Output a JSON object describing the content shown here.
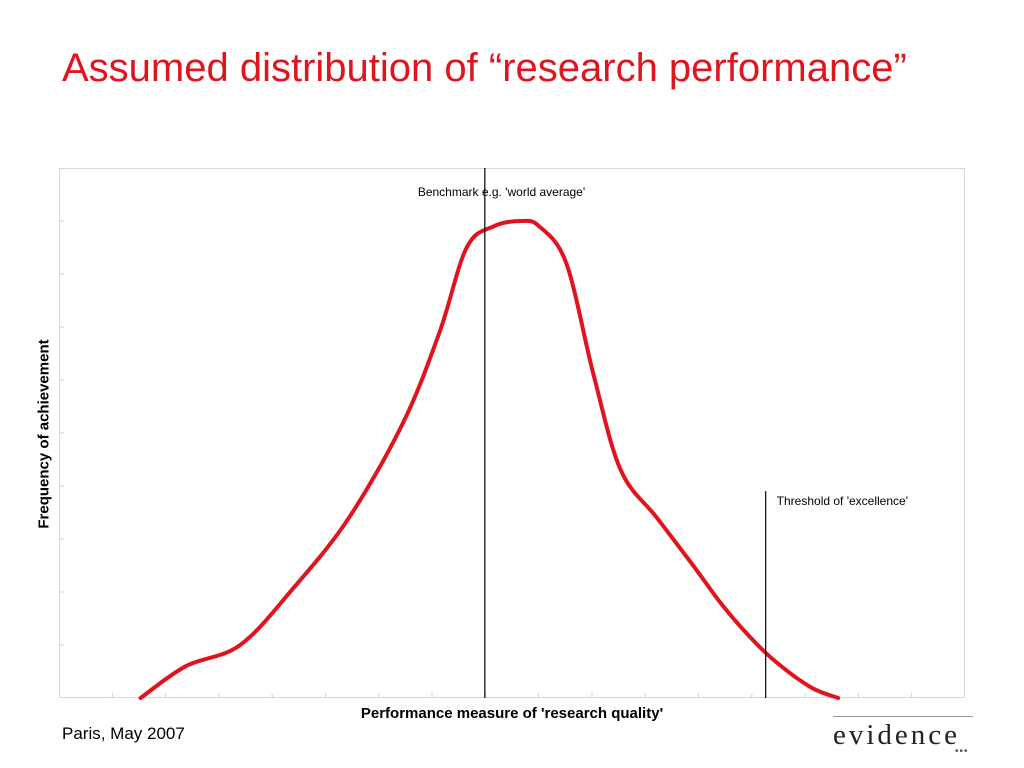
{
  "slide": {
    "title": "Assumed distribution of “research performance”",
    "footer": "Paris, May 2007",
    "logo_text": "evidence",
    "logo_dots": "•••"
  },
  "colors": {
    "title": "#e0141e",
    "curve": "#e0141e",
    "annotation_line": "#000000"
  },
  "chart_data": {
    "type": "line",
    "title": "",
    "xlabel": "Performance measure of 'research quality'",
    "ylabel": "Frequency of achievement",
    "xlim": [
      0,
      100
    ],
    "ylim": [
      0,
      10
    ],
    "grid": false,
    "series": [
      {
        "name": "",
        "x": [
          9,
          14,
          20,
          26,
          32,
          38,
          42,
          45,
          48,
          51,
          53,
          56,
          59,
          62,
          66,
          70,
          73,
          76,
          79,
          83,
          86
        ],
        "y": [
          0,
          0.6,
          1,
          2.1,
          3.4,
          5.2,
          6.9,
          8.5,
          8.9,
          9.0,
          8.9,
          8.2,
          6.1,
          4.3,
          3.4,
          2.5,
          1.8,
          1.2,
          0.7,
          0.2,
          0
        ]
      }
    ],
    "annotations": [
      {
        "label": "Benchmark e.g. 'world average'",
        "x": 47,
        "y_top": 10.0
      },
      {
        "label": "Threshold of 'excellence'",
        "x": 78,
        "y_top": 3.9
      }
    ]
  }
}
